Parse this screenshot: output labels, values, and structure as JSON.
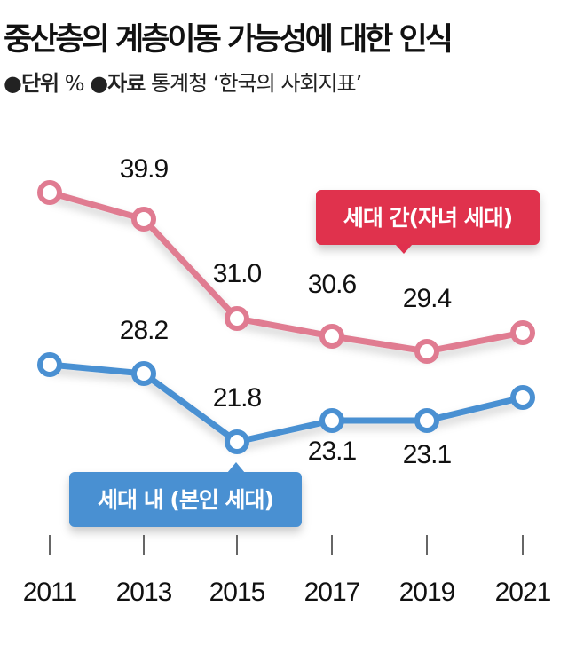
{
  "title": "중산층의 계층이동 가능성에 대한 인식",
  "subtitle": {
    "unit_label": "●단위",
    "unit": "%",
    "source_label": "●자료",
    "source": "통계청 ‘한국의 사회지표’"
  },
  "chart_data": {
    "type": "line",
    "categories": [
      "2011",
      "2013",
      "2015",
      "2017",
      "2019",
      "2021"
    ],
    "series": [
      {
        "name": "세대 간(자녀 세대)",
        "color": "#e07b91",
        "label_color": "#e0304e",
        "values": [
          null,
          39.9,
          31.0,
          30.6,
          29.4,
          null
        ]
      },
      {
        "name": "세대 내 (본인 세대)",
        "color": "#4a90d2",
        "label_color": "#4a90d2",
        "values": [
          null,
          28.2,
          21.8,
          23.1,
          23.1,
          null
        ]
      }
    ],
    "grid": false,
    "legend": "inline-labels"
  }
}
